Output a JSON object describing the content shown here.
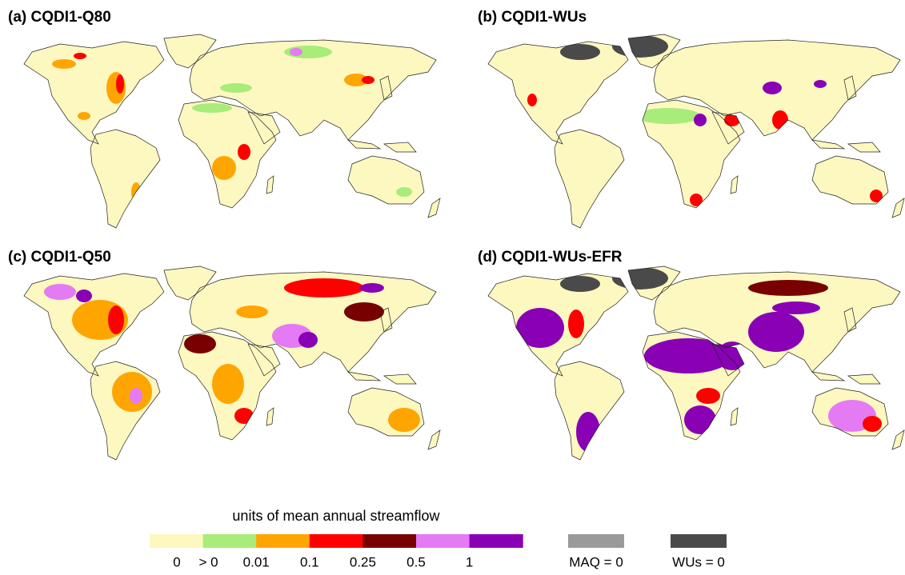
{
  "panels": [
    {
      "title": "(a) CQDI1-Q80"
    },
    {
      "title": "(b) CQDI1-WUs"
    },
    {
      "title": "(c) CQDI1-Q50"
    },
    {
      "title": "(d) CQDI1-WUs-EFR"
    }
  ],
  "legend": {
    "title": "units of mean annual streamflow",
    "colors": [
      "#fdf8c0",
      "#a8ec7a",
      "#ffa500",
      "#ff0000",
      "#780000",
      "#e47af4",
      "#8a00b4"
    ],
    "labels": [
      "0",
      "> 0",
      "0.01",
      "0.1",
      "0.25",
      "0.5",
      "1"
    ],
    "special": [
      {
        "label": "MAQ = 0",
        "color": "#9a9a9a"
      },
      {
        "label": "WUs = 0",
        "color": "#4a4a4a"
      }
    ]
  }
}
